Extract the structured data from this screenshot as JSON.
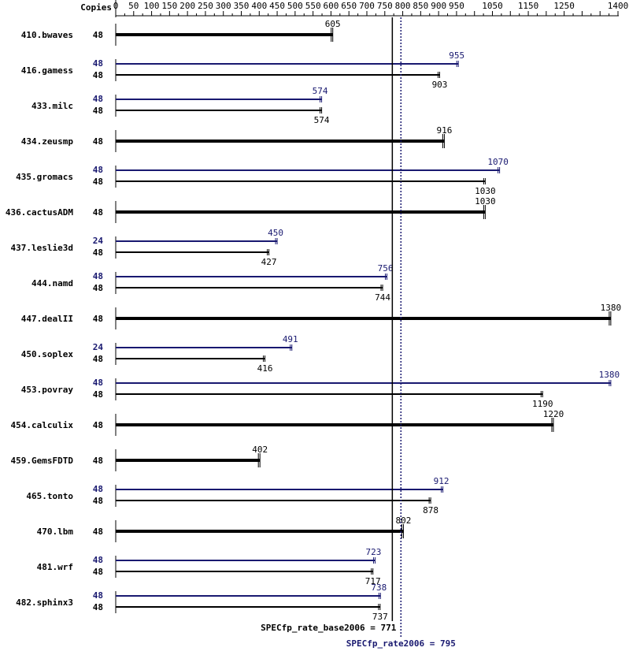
{
  "chart_data": {
    "type": "bar",
    "orientation": "horizontal",
    "copies_header": "Copies",
    "x_ticks": [
      "0",
      "50",
      "100",
      "150",
      "200",
      "250",
      "300",
      "350",
      "400",
      "450",
      "500",
      "550",
      "600",
      "650",
      "700",
      "750",
      "800",
      "850",
      "900",
      "950",
      "1050",
      "1150",
      "1250",
      "1400"
    ],
    "x_tick_values": [
      0,
      50,
      100,
      150,
      200,
      250,
      300,
      350,
      400,
      450,
      500,
      550,
      600,
      650,
      700,
      750,
      800,
      850,
      900,
      950,
      1050,
      1150,
      1250,
      1400
    ],
    "xlim": [
      0,
      1400
    ],
    "colors": {
      "base": "#000000",
      "peak": "#191970"
    },
    "benchmarks": [
      {
        "name": "410.bwaves",
        "base_copies": "48",
        "base": 605,
        "base_label": "605"
      },
      {
        "name": "416.gamess",
        "peak_copies": "48",
        "peak": 955,
        "peak_label": "955",
        "base_copies": "48",
        "base": 903,
        "base_label": "903"
      },
      {
        "name": "433.milc",
        "peak_copies": "48",
        "peak": 574,
        "peak_label": "574",
        "base_copies": "48",
        "base": 574,
        "base_label": "574"
      },
      {
        "name": "434.zeusmp",
        "base_copies": "48",
        "base": 916,
        "base_label": "916"
      },
      {
        "name": "435.gromacs",
        "peak_copies": "48",
        "peak": 1070,
        "peak_label": "1070",
        "base_copies": "48",
        "base": 1030,
        "base_label": "1030"
      },
      {
        "name": "436.cactusADM",
        "base_copies": "48",
        "base": 1030,
        "base_label": "1030"
      },
      {
        "name": "437.leslie3d",
        "peak_copies": "24",
        "peak": 450,
        "peak_label": "450",
        "base_copies": "48",
        "base": 427,
        "base_label": "427"
      },
      {
        "name": "444.namd",
        "peak_copies": "48",
        "peak": 756,
        "peak_label": "756",
        "base_copies": "48",
        "base": 744,
        "base_label": "744"
      },
      {
        "name": "447.dealII",
        "base_copies": "48",
        "base": 1380,
        "base_label": "1380"
      },
      {
        "name": "450.soplex",
        "peak_copies": "24",
        "peak": 491,
        "peak_label": "491",
        "base_copies": "48",
        "base": 416,
        "base_label": "416"
      },
      {
        "name": "453.povray",
        "peak_copies": "48",
        "peak": 1380,
        "peak_label": "1380",
        "base_copies": "48",
        "base": 1190,
        "base_label": "1190"
      },
      {
        "name": "454.calculix",
        "base_copies": "48",
        "base": 1220,
        "base_label": "1220"
      },
      {
        "name": "459.GemsFDTD",
        "base_copies": "48",
        "base": 402,
        "base_label": "402"
      },
      {
        "name": "465.tonto",
        "peak_copies": "48",
        "peak": 912,
        "peak_label": "912",
        "base_copies": "48",
        "base": 878,
        "base_label": "878"
      },
      {
        "name": "470.lbm",
        "base_copies": "48",
        "base": 802,
        "base_label": "802"
      },
      {
        "name": "481.wrf",
        "peak_copies": "48",
        "peak": 723,
        "peak_label": "723",
        "base_copies": "48",
        "base": 717,
        "base_label": "717"
      },
      {
        "name": "482.sphinx3",
        "peak_copies": "48",
        "peak": 738,
        "peak_label": "738",
        "base_copies": "48",
        "base": 737,
        "base_label": "737"
      }
    ],
    "summary": {
      "base_value": 771,
      "base_label": "SPECfp_rate_base2006 = 771",
      "peak_value": 795,
      "peak_label": "SPECfp_rate2006 = 795"
    }
  }
}
